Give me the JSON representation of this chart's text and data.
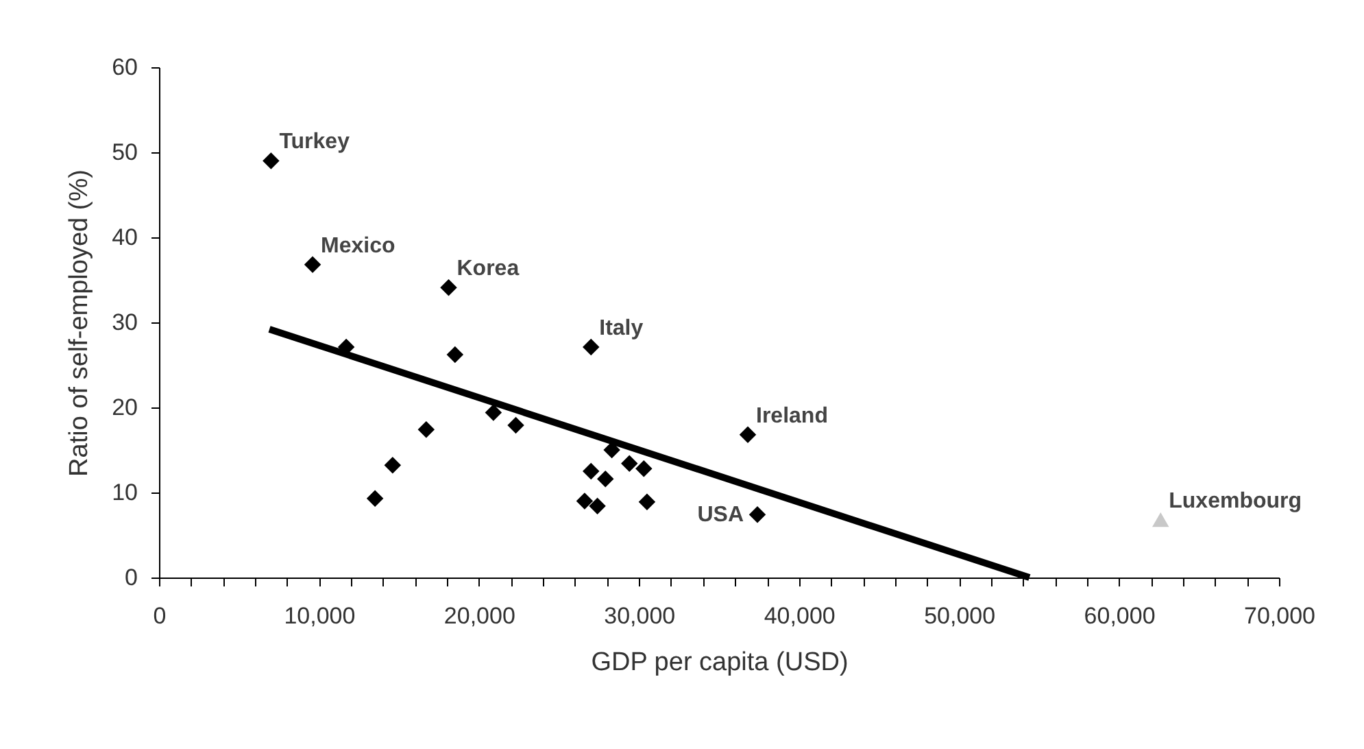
{
  "chart_data": {
    "type": "scatter",
    "xlabel": "GDP per capita (USD)",
    "ylabel": "Ratio of self-employed (%)",
    "xlim": [
      0,
      70000
    ],
    "ylim": [
      0,
      60
    ],
    "xticks": [
      0,
      {
        "value": 2000,
        "label": null
      },
      {
        "value": 4000,
        "label": null
      },
      {
        "value": 6000,
        "label": null
      },
      {
        "value": 8000,
        "label": null
      },
      {
        "value": 10000,
        "label": "10,000"
      },
      {
        "value": 12000,
        "label": null
      },
      {
        "value": 14000,
        "label": null
      },
      {
        "value": 16000,
        "label": null
      },
      {
        "value": 18000,
        "label": null
      },
      {
        "value": 20000,
        "label": "20,000"
      },
      {
        "value": 22000,
        "label": null
      },
      {
        "value": 24000,
        "label": null
      },
      {
        "value": 26000,
        "label": null
      },
      {
        "value": 28000,
        "label": null
      },
      {
        "value": 30000,
        "label": "30,000"
      },
      {
        "value": 32000,
        "label": null
      },
      {
        "value": 34000,
        "label": null
      },
      {
        "value": 36000,
        "label": null
      },
      {
        "value": 38000,
        "label": null
      },
      {
        "value": 40000,
        "label": "40,000"
      },
      {
        "value": 42000,
        "label": null
      },
      {
        "value": 44000,
        "label": null
      },
      {
        "value": 46000,
        "label": null
      },
      {
        "value": 48000,
        "label": null
      },
      {
        "value": 50000,
        "label": "50,000"
      },
      {
        "value": 52000,
        "label": null
      },
      {
        "value": 54000,
        "label": null
      },
      {
        "value": 56000,
        "label": null
      },
      {
        "value": 58000,
        "label": null
      },
      {
        "value": 60000,
        "label": "60,000"
      },
      {
        "value": 62000,
        "label": null
      },
      {
        "value": 64000,
        "label": null
      },
      {
        "value": 66000,
        "label": null
      },
      {
        "value": 68000,
        "label": null
      },
      {
        "value": 70000,
        "label": "70,000"
      }
    ],
    "yticks": [
      0,
      10,
      20,
      30,
      40,
      50,
      60
    ],
    "grid": false,
    "series": [
      {
        "marker": "diamond",
        "color": "#000000",
        "x": [
          7000,
          9600,
          18100,
          11700,
          18500,
          27000,
          20900,
          22300,
          16700,
          14600,
          13500,
          28300,
          29400,
          30300,
          27000,
          27900,
          26600,
          27400,
          30500,
          36800,
          37400
        ],
        "values": [
          49,
          36.8,
          34.1,
          27.1,
          26.2,
          27.1,
          19.4,
          17.9,
          17.4,
          13.2,
          9.3,
          15,
          13.4,
          12.8,
          12.5,
          11.6,
          9,
          8.4,
          8.9,
          16.8,
          7.4
        ]
      },
      {
        "marker": "triangle",
        "color": "#c8c8c8",
        "x": [
          62600
        ],
        "values": [
          6.8
        ]
      },
      {
        "type": "line",
        "color": "#000000",
        "x": [
          6900,
          54400
        ],
        "values": [
          29.2,
          0
        ]
      }
    ],
    "annotations": [
      {
        "text": "Turkey",
        "x": 7000,
        "y": 49
      },
      {
        "text": "Mexico",
        "x": 9600,
        "y": 36.8
      },
      {
        "text": "Korea",
        "x": 18100,
        "y": 34.1
      },
      {
        "text": "Italy",
        "x": 27000,
        "y": 27.1
      },
      {
        "text": "Ireland",
        "x": 36800,
        "y": 16.8
      },
      {
        "text": "USA",
        "x": 37400,
        "y": 7.4
      },
      {
        "text": "Luxembourg",
        "x": 62600,
        "y": 6.8
      }
    ]
  }
}
